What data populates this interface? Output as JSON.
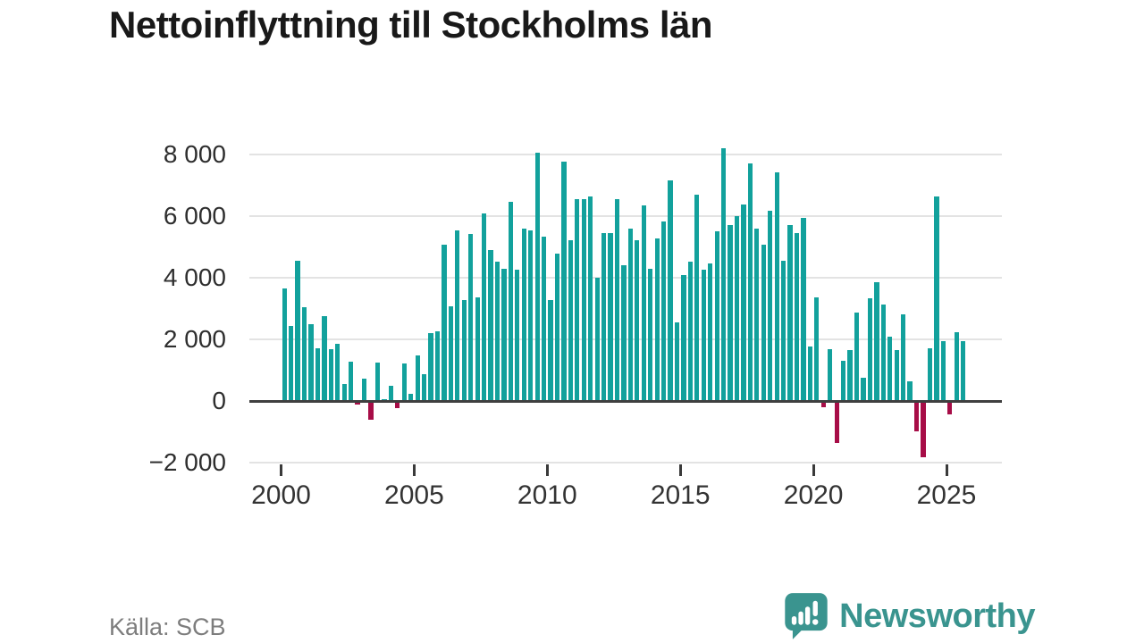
{
  "title": "Nettoinflyttning till Stockholms län",
  "source": {
    "text": "Källa: SCB"
  },
  "logo": {
    "text": "Newsworthy"
  },
  "colors": {
    "bar_positive": "#12a19c",
    "bar_negative": "#a70d47",
    "gridline": "#e3e3e3",
    "zero_line": "#3f3f3f",
    "y_label": "#2e2e2e",
    "x_label": "#333333",
    "tick": "#3a3a3a",
    "title": "#191919",
    "source_text": "#7d7d7d",
    "logo_teal": "#3a948f",
    "background": "#ffffff"
  },
  "chart_data": {
    "type": "bar",
    "title": "Nettoinflyttning till Stockholms län",
    "xlabel": "",
    "ylabel": "",
    "frequency": "quarterly",
    "x_range": "2000Q1–2025Q3",
    "ylim": [
      -2000,
      8000
    ],
    "grid": "horizontal",
    "legend": "none",
    "y_axis": {
      "ticks": [
        {
          "label": "8 000",
          "value": 8000
        },
        {
          "label": "6 000",
          "value": 6000
        },
        {
          "label": "4 000",
          "value": 4000
        },
        {
          "label": "2 000",
          "value": 2000
        },
        {
          "label": "0",
          "value": 0
        },
        {
          "label": "−2 000",
          "value": -2000
        }
      ]
    },
    "x_axis": {
      "ticks": [
        {
          "label": "2000",
          "year": 2000
        },
        {
          "label": "2005",
          "year": 2005
        },
        {
          "label": "2010",
          "year": 2010
        },
        {
          "label": "2015",
          "year": 2015
        },
        {
          "label": "2020",
          "year": 2020
        },
        {
          "label": "2025",
          "year": 2025
        }
      ]
    },
    "quarters": [
      "2000Q1",
      "2000Q2",
      "2000Q3",
      "2000Q4",
      "2001Q1",
      "2001Q2",
      "2001Q3",
      "2001Q4",
      "2002Q1",
      "2002Q2",
      "2002Q3",
      "2002Q4",
      "2003Q1",
      "2003Q2",
      "2003Q3",
      "2003Q4",
      "2004Q1",
      "2004Q2",
      "2004Q3",
      "2004Q4",
      "2005Q1",
      "2005Q2",
      "2005Q3",
      "2005Q4",
      "2006Q1",
      "2006Q2",
      "2006Q3",
      "2006Q4",
      "2007Q1",
      "2007Q2",
      "2007Q3",
      "2007Q4",
      "2008Q1",
      "2008Q2",
      "2008Q3",
      "2008Q4",
      "2009Q1",
      "2009Q2",
      "2009Q3",
      "2009Q4",
      "2010Q1",
      "2010Q2",
      "2010Q3",
      "2010Q4",
      "2011Q1",
      "2011Q2",
      "2011Q3",
      "2011Q4",
      "2012Q1",
      "2012Q2",
      "2012Q3",
      "2012Q4",
      "2013Q1",
      "2013Q2",
      "2013Q3",
      "2013Q4",
      "2014Q1",
      "2014Q2",
      "2014Q3",
      "2014Q4",
      "2015Q1",
      "2015Q2",
      "2015Q3",
      "2015Q4",
      "2016Q1",
      "2016Q2",
      "2016Q3",
      "2016Q4",
      "2017Q1",
      "2017Q2",
      "2017Q3",
      "2017Q4",
      "2018Q1",
      "2018Q2",
      "2018Q3",
      "2018Q4",
      "2019Q1",
      "2019Q2",
      "2019Q3",
      "2019Q4",
      "2020Q1",
      "2020Q2",
      "2020Q3",
      "2020Q4",
      "2021Q1",
      "2021Q2",
      "2021Q3",
      "2021Q4",
      "2022Q1",
      "2022Q2",
      "2022Q3",
      "2022Q4",
      "2023Q1",
      "2023Q2",
      "2023Q3",
      "2023Q4",
      "2024Q1",
      "2024Q2",
      "2024Q3",
      "2024Q4",
      "2025Q1",
      "2025Q2",
      "2025Q3"
    ],
    "values": [
      3650,
      2440,
      4530,
      3050,
      2480,
      1700,
      2760,
      1690,
      1840,
      540,
      1270,
      -80,
      710,
      -570,
      1230,
      50,
      500,
      -200,
      1210,
      220,
      1490,
      870,
      2210,
      2260,
      5070,
      3080,
      5520,
      3280,
      5400,
      3360,
      6070,
      4890,
      4500,
      4290,
      6440,
      4260,
      5570,
      5540,
      8030,
      5320,
      3270,
      4780,
      7760,
      5220,
      6550,
      6550,
      6620,
      3990,
      5440,
      5440,
      6550,
      4400,
      5590,
      5210,
      6330,
      4280,
      5270,
      5830,
      7140,
      2540,
      4070,
      4500,
      6670,
      4260,
      4450,
      5490,
      8180,
      5710,
      5980,
      6360,
      7710,
      5580,
      5060,
      6160,
      7410,
      4550,
      5690,
      5440,
      5920,
      1770,
      3360,
      -170,
      1680,
      -1330,
      1300,
      1650,
      2850,
      740,
      3340,
      3850,
      3120,
      2070,
      1640,
      2800,
      640,
      -950,
      -1790,
      1700,
      6640,
      1930,
      -410,
      2240,
      1930
    ]
  }
}
